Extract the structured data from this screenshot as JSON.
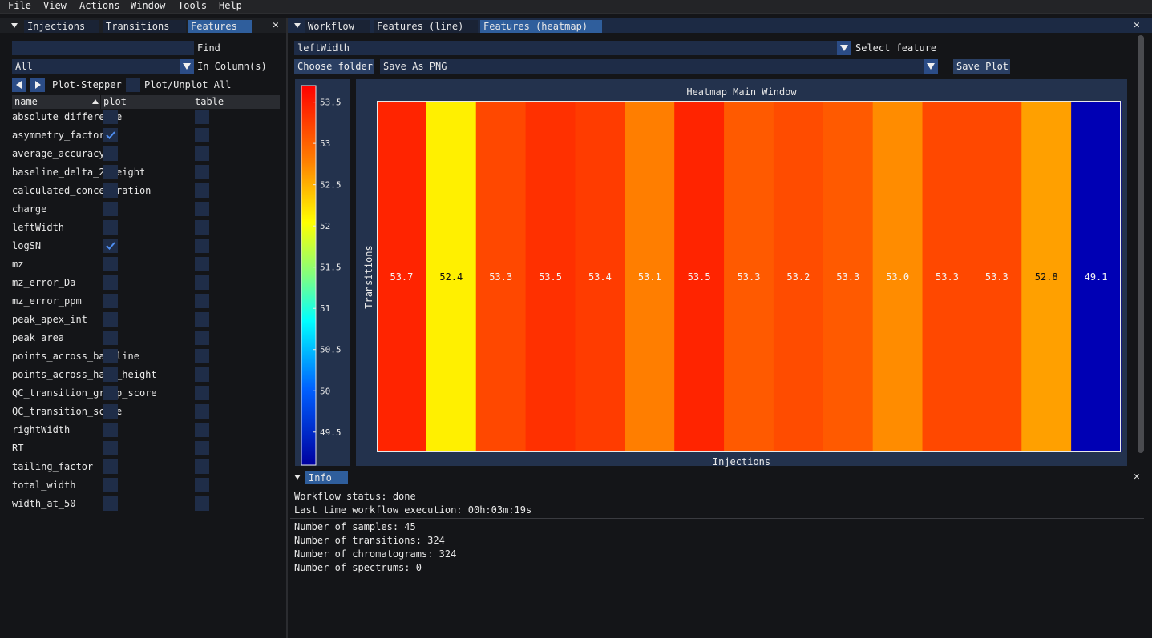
{
  "menu": [
    "File",
    "View",
    "Actions",
    "Window",
    "Tools",
    "Help"
  ],
  "left": {
    "tabs": [
      "Injections",
      "Transitions",
      "Features"
    ],
    "active_tab": "Features",
    "find_label": "Find",
    "find_value": "",
    "column_select": "All",
    "column_label": "In Column(s)",
    "stepper_label": "Plot-Stepper",
    "plot_all_label": "Plot/Unplot All",
    "columns": [
      "name",
      "plot",
      "table"
    ],
    "rows": [
      {
        "name": "absolute_difference",
        "plot": false
      },
      {
        "name": "asymmetry_factor",
        "plot": true
      },
      {
        "name": "average_accuracy",
        "plot": false
      },
      {
        "name": "baseline_delta_2_height",
        "plot": false
      },
      {
        "name": "calculated_concentration",
        "plot": false
      },
      {
        "name": "charge",
        "plot": false
      },
      {
        "name": "leftWidth",
        "plot": false
      },
      {
        "name": "logSN",
        "plot": true
      },
      {
        "name": "mz",
        "plot": false
      },
      {
        "name": "mz_error_Da",
        "plot": false
      },
      {
        "name": "mz_error_ppm",
        "plot": false
      },
      {
        "name": "peak_apex_int",
        "plot": false
      },
      {
        "name": "peak_area",
        "plot": false
      },
      {
        "name": "points_across_baseline",
        "plot": false
      },
      {
        "name": "points_across_half_height",
        "plot": false
      },
      {
        "name": "QC_transition_group_score",
        "plot": false
      },
      {
        "name": "QC_transition_score",
        "plot": false
      },
      {
        "name": "rightWidth",
        "plot": false
      },
      {
        "name": "RT",
        "plot": false
      },
      {
        "name": "tailing_factor",
        "plot": false
      },
      {
        "name": "total_width",
        "plot": false
      },
      {
        "name": "width_at_50",
        "plot": false
      }
    ]
  },
  "right": {
    "tabs": [
      "Workflow",
      "Features (line)",
      "Features (heatmap)"
    ],
    "active_tab": "Features (heatmap)",
    "feature_value": "leftWidth",
    "select_feature_label": "Select feature",
    "choose_folder_label": "Choose folder",
    "save_format": "Save As PNG",
    "save_plot_label": "Save Plot"
  },
  "chart_data": {
    "type": "heatmap",
    "title": "Heatmap Main Window",
    "xlabel": "Injections",
    "ylabel": "Transitions",
    "values": [
      53.7,
      52.4,
      53.3,
      53.5,
      53.4,
      53.1,
      53.5,
      53.3,
      53.2,
      53.3,
      53.0,
      53.3,
      53.3,
      52.8,
      49.1
    ],
    "labels": [
      "53.7",
      "52.4",
      "53.3",
      "53.5",
      "53.4",
      "53.1",
      "53.5",
      "53.3",
      "53.2",
      "53.3",
      "53.0",
      "53.3",
      "53.3",
      "52.8",
      "49.1"
    ],
    "cell_colors": [
      "#ff2400",
      "#fff000",
      "#ff4800",
      "#ff3000",
      "#ff3c00",
      "#ff7e00",
      "#ff2400",
      "#ff5a00",
      "#ff4c00",
      "#ff5a00",
      "#ff8c00",
      "#ff4800",
      "#ff4800",
      "#ffa000",
      "#0000b4"
    ],
    "colorbar_ticks": [
      "53.5",
      "53",
      "52.5",
      "52",
      "51.5",
      "51",
      "50.5",
      "50",
      "49.5"
    ],
    "colorbar_tick_values": [
      53.5,
      53,
      52.5,
      52,
      51.5,
      51,
      50.5,
      50,
      49.5
    ],
    "colorbar_range": [
      49.1,
      53.7
    ]
  },
  "info": {
    "tab": "Info",
    "status": "Workflow status: done",
    "last_time": "Last time workflow execution: 00h:03m:19s",
    "samples": "Number of samples: 45",
    "transitions": "Number of transitions: 324",
    "chromatograms": "Number of chromatograms: 324",
    "spectrums": "Number of spectrums: 0"
  }
}
